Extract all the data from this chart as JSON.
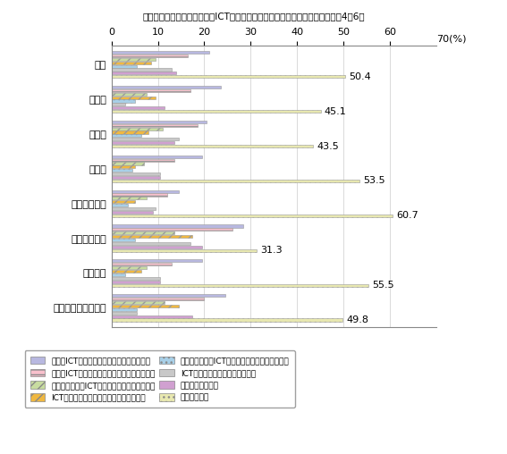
{
  "title": "金融・保険以外の産業では、ICT教育をまったく実施していない企業の割合は4〜6割",
  "categories": [
    "全体",
    "建設業",
    "製造業",
    "運輸業",
    "卸売・小売業",
    "金融・保険業",
    "不動産業",
    "サービス業、その他"
  ],
  "series": [
    {
      "name": "社内のICT関連教育・研修プログラムの実施",
      "color": "#b8b8e0",
      "hatch": "",
      "values": [
        21.0,
        23.5,
        20.5,
        19.5,
        14.5,
        28.5,
        19.5,
        24.5
      ]
    },
    {
      "name": "社外のICT関連教育・研修プログラムへの参加",
      "color": "#f8c0cc",
      "hatch": "---",
      "values": [
        16.5,
        17.0,
        18.5,
        13.5,
        12.0,
        26.0,
        13.0,
        20.0
      ]
    },
    {
      "name": "社員の自主的なICT関連学習活動への金銭支援",
      "color": "#c8dca0",
      "hatch": "///",
      "values": [
        9.5,
        7.5,
        11.0,
        7.0,
        7.5,
        13.5,
        7.5,
        11.5
      ]
    },
    {
      "name": "ICT関連資格の取得に対する報奨金の支給",
      "color": "#f0b840",
      "hatch": "///",
      "values": [
        8.5,
        9.5,
        8.0,
        5.0,
        5.0,
        17.5,
        6.5,
        14.5
      ]
    },
    {
      "name": "社員の自主的なICT関連学習活動への時間的支援",
      "color": "#a8d0e8",
      "hatch": "...",
      "values": [
        5.5,
        5.0,
        6.5,
        4.5,
        3.5,
        5.0,
        3.0,
        5.5
      ]
    },
    {
      "name": "ICT関連技能・能力テストの実施",
      "color": "#c8c8c8",
      "hatch": "",
      "values": [
        13.0,
        3.0,
        14.5,
        10.5,
        9.5,
        17.0,
        10.5,
        5.5
      ]
    },
    {
      "name": "その他の教育訓練",
      "color": "#d0a0d0",
      "hatch": "",
      "values": [
        14.0,
        11.5,
        13.5,
        10.5,
        9.0,
        19.5,
        10.5,
        17.5
      ]
    },
    {
      "name": "行っていない",
      "color": "#e8e8b0",
      "hatch": "...",
      "values": [
        50.4,
        45.1,
        43.5,
        53.5,
        60.7,
        31.3,
        55.5,
        49.8
      ]
    }
  ],
  "xlim": [
    0,
    70
  ],
  "xticks": [
    0,
    10,
    20,
    30,
    40,
    50,
    60
  ],
  "xlabel_extra": "70(%)",
  "annotations": [
    {
      "text": "50.4",
      "x": 50.4,
      "category": 0
    },
    {
      "text": "45.1",
      "x": 45.1,
      "category": 1
    },
    {
      "text": "43.5",
      "x": 43.5,
      "category": 2
    },
    {
      "text": "53.5",
      "x": 53.5,
      "category": 3
    },
    {
      "text": "60.7",
      "x": 60.7,
      "category": 4
    },
    {
      "text": "31.3",
      "x": 31.3,
      "category": 5
    },
    {
      "text": "55.5",
      "x": 55.5,
      "category": 6
    },
    {
      "text": "49.8",
      "x": 49.8,
      "category": 7
    }
  ]
}
